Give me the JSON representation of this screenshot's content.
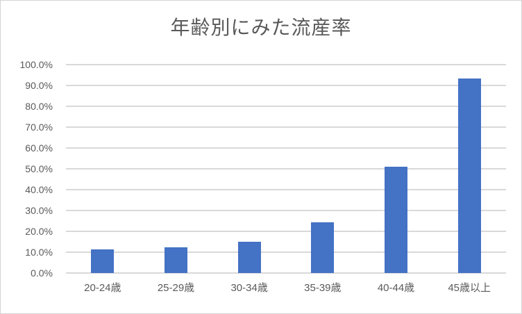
{
  "window": {
    "background": "#FFFFFF",
    "frame_border_color": "#D3D3D3"
  },
  "chart_data": {
    "type": "bar",
    "title": "年齢別にみた流産率",
    "categories": [
      "20-24歳",
      "25-29歳",
      "30-34歳",
      "35-39歳",
      "40-44歳",
      "45歳以上"
    ],
    "values": [
      11.3,
      12.2,
      15.0,
      24.5,
      51.0,
      93.4
    ],
    "value_unit": "%",
    "xlabel": "",
    "ylabel": "",
    "ylim": [
      0,
      100
    ],
    "y_tick_step": 10,
    "y_tick_labels": [
      "100.0%",
      "90.0%",
      "80.0%",
      "70.0%",
      "60.0%",
      "50.0%",
      "40.0%",
      "30.0%",
      "20.0%",
      "10.0%",
      "0.0%"
    ],
    "grid": true,
    "legend_position": "none",
    "bar_color": "#4472C4",
    "gridline_color": "#D9D9D9",
    "axis_text_color": "#595959",
    "title_color": "#595959"
  }
}
